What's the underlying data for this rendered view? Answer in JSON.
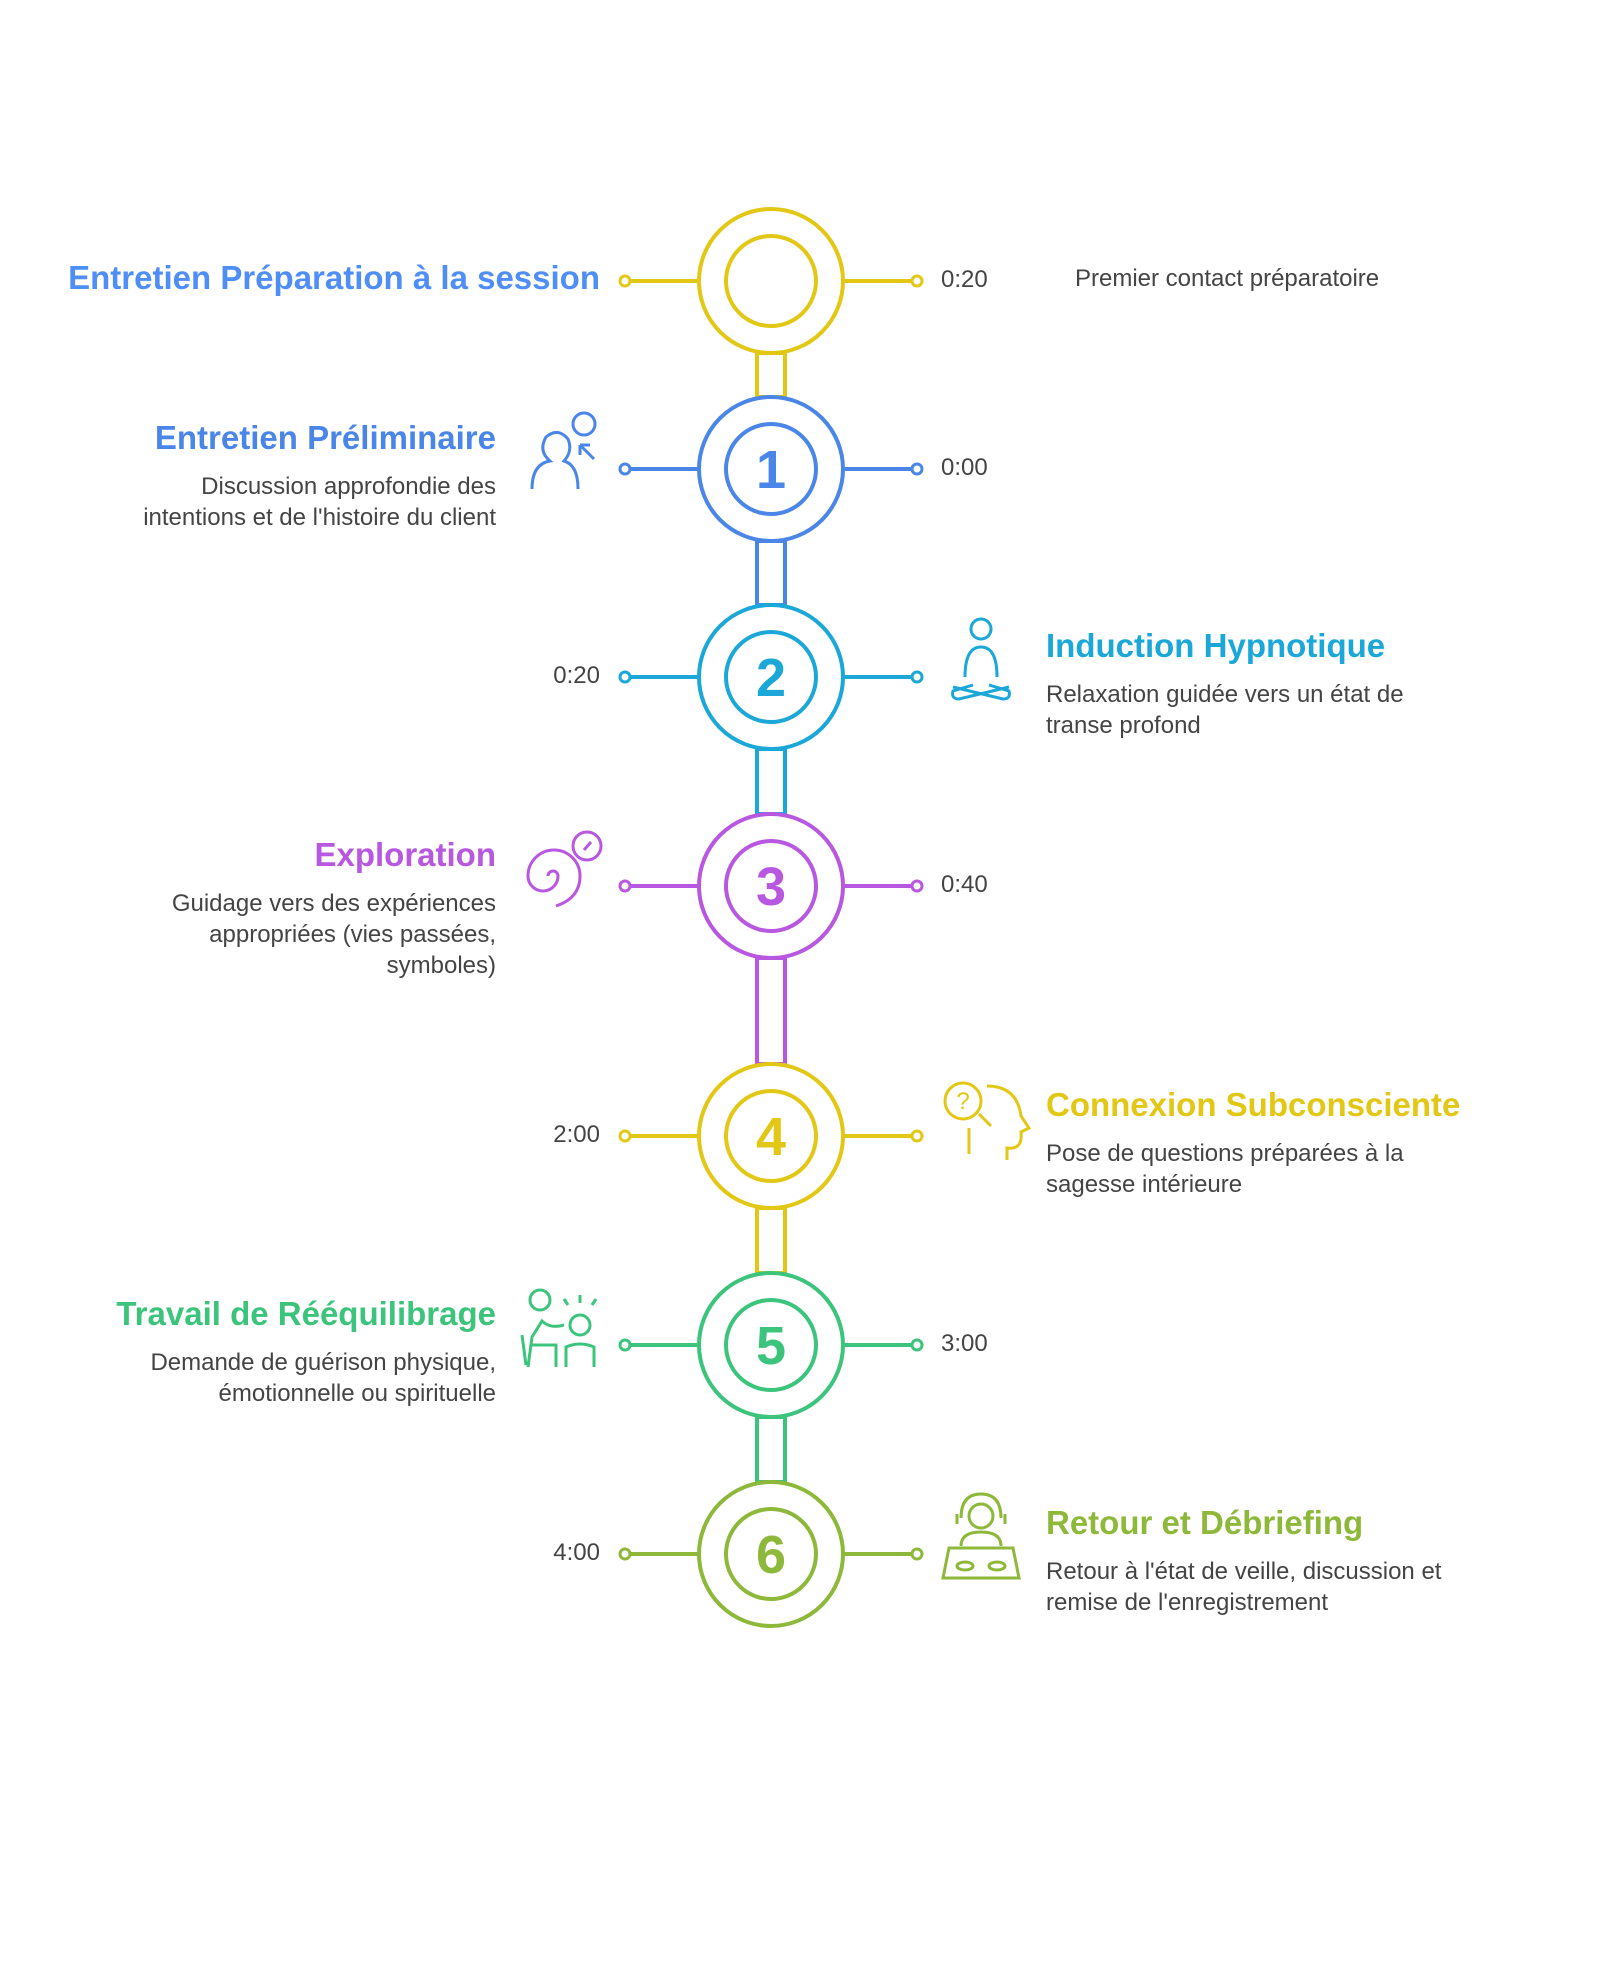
{
  "steps": [
    {
      "number": "",
      "title": "Entretien Préparation à la session",
      "description": "Premier contact préparatoire",
      "time": "0:20",
      "color": "#E2C714",
      "title_color": "#4F8EF7",
      "side": "left",
      "time_side": "right",
      "icon": ""
    },
    {
      "number": "1",
      "title": "Entretien Préliminaire",
      "description": "Discussion approfondie des intentions et de l'histoire du client",
      "time": "0:00",
      "color": "#4A86E8",
      "title_color": "#4A86E8",
      "side": "left",
      "time_side": "right",
      "icon": "consultation-icon"
    },
    {
      "number": "2",
      "title": "Induction Hypnotique",
      "description": "Relaxation guidée vers un état de transe profond",
      "time": "0:20",
      "color": "#1BA8D8",
      "title_color": "#1BA8D8",
      "side": "right",
      "time_side": "left",
      "icon": "meditation-icon"
    },
    {
      "number": "3",
      "title": "Exploration",
      "description": "Guidage vers des expériences appropriées (vies passées, symboles)",
      "time": "0:40",
      "color": "#B857E0",
      "title_color": "#B857E0",
      "side": "left",
      "time_side": "right",
      "icon": "spiral-icon"
    },
    {
      "number": "4",
      "title": "Connexion Subconsciente",
      "description": "Pose de questions préparées à la sagesse intérieure",
      "time": "2:00",
      "color": "#E2C714",
      "title_color": "#E2C714",
      "side": "right",
      "time_side": "left",
      "icon": "head-question-icon"
    },
    {
      "number": "5",
      "title": "Travail de Rééquilibrage",
      "description": "Demande de guérison physique, émotionnelle ou spirituelle",
      "time": "3:00",
      "color": "#3CC47C",
      "title_color": "#3CC47C",
      "side": "left",
      "time_side": "right",
      "icon": "healing-session-icon"
    },
    {
      "number": "6",
      "title": "Retour et Débriefing",
      "description": "Retour à l'état de veille, discussion et remise de l'enregistrement",
      "time": "4:00",
      "color": "#8DB83A",
      "title_color": "#8DB83A",
      "side": "right",
      "time_side": "left",
      "icon": "debrief-icon"
    }
  ]
}
